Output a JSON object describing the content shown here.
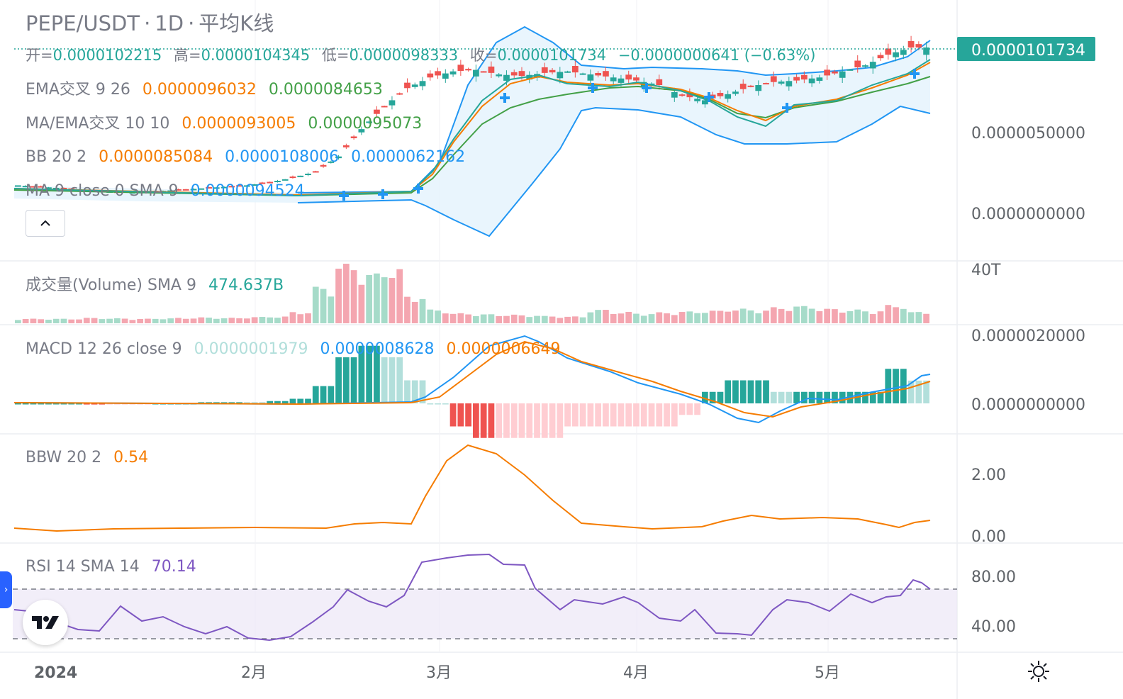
{
  "header": {
    "symbol": "PEPE/USDT",
    "interval": "1D",
    "chart_style": "平均K线",
    "ohlc": {
      "open_label": "开=",
      "open": "0.0000102215",
      "high_label": "高=",
      "high": "0.0000104345",
      "low_label": "低=",
      "low": "0.0000098333",
      "close_label": "收=",
      "close": "0.0000101734",
      "change": "−0.0000000641 (−0.63%)"
    }
  },
  "indicators": {
    "ema_cross": {
      "label": "EMA交叉 9 26",
      "v1": "0.0000096032",
      "v2": "0.0000084653"
    },
    "ma_ema_cross": {
      "label": "MA/EMA交叉 10 10",
      "v1": "0.0000093005",
      "v2": "0.0000095073"
    },
    "bb": {
      "label": "BB 20 2",
      "v1": "0.0000085084",
      "v2": "0.0000108006",
      "v3": "0.0000062162"
    },
    "ma": {
      "label": "MA 9 close 0 SMA 9",
      "v1": "0.0000094524"
    },
    "volume": {
      "label": "成交量(Volume) SMA 9",
      "v1": "474.637B"
    },
    "macd": {
      "label": "MACD 12 26 close 9",
      "v1": "0.0000001979",
      "v2": "0.0000008628",
      "v3": "0.0000006649"
    },
    "bbw": {
      "label": "BBW 20 2",
      "v1": "0.54"
    },
    "rsi": {
      "label": "RSI 14 SMA 14",
      "v1": "70.14"
    }
  },
  "price_axis": {
    "last_price": "0.0000101734",
    "main_ticks": [
      "0.0000050000",
      "0.0000000000"
    ],
    "volume_tick": "40T",
    "macd_ticks": [
      "0.0000020000",
      "0.0000000000"
    ],
    "bbw_ticks": [
      "2.00",
      "0.00"
    ],
    "rsi_ticks": [
      "80.00",
      "40.00"
    ]
  },
  "time_axis": [
    "2024",
    "2月",
    "3月",
    "4月",
    "5月"
  ],
  "colors": {
    "up": "#26a69a",
    "down": "#ef5350",
    "ema_fast": "#f57c00",
    "ema_slow": "#43a047",
    "bb": "#2196f3",
    "ma": "#2196f3",
    "macd_line": "#2196f3",
    "signal_line": "#f57c00",
    "bbw": "#f57c00",
    "rsi": "#7e57c2",
    "accent": "#2962ff"
  },
  "chart_data": [
    {
      "type": "candlestick",
      "title": "PEPE/USDT · 1D · 平均K线",
      "x": [
        "2024-01",
        "2024-02",
        "2024-03",
        "2024-04",
        "2024-05"
      ],
      "ylim": [
        0,
        1.05e-05
      ],
      "closes": [
        1.1e-06,
        1e-06,
        9e-07,
        8e-07,
        7e-07,
        6.5e-07,
        7e-07,
        8e-07,
        9e-07,
        1e-06,
        1.1e-06,
        1.3e-06,
        1.6e-06,
        2e-06,
        3e-06,
        4.8e-06,
        6.3e-06,
        7.5e-06,
        8.2e-06,
        8.6e-06,
        8.7e-06,
        8.4e-06,
        8.3e-06,
        8.5e-06,
        8.6e-06,
        8.4e-06,
        8.2e-06,
        8e-06,
        7.7e-06,
        7e-06,
        6.7e-06,
        7.1e-06,
        7.6e-06,
        7.9e-06,
        8e-06,
        8.2e-06,
        8.6e-06,
        9e-06,
        9.7e-06,
        1.01734e-05
      ],
      "last": 1.01734e-05
    },
    {
      "type": "bar",
      "title": "成交量(Volume) SMA 9",
      "sma": "474.637B",
      "values": [
        1,
        1,
        1,
        1.2,
        1.1,
        1,
        1.1,
        1.2,
        1.3,
        1.2,
        1.4,
        1.5,
        2.5,
        8,
        13,
        11,
        12,
        6,
        3,
        2.2,
        2,
        1.9,
        1.8,
        1.6,
        1.5,
        3,
        2.5,
        2.2,
        2.4,
        2.6,
        2.8,
        3.2,
        3,
        3.5,
        3.8,
        3.2,
        3,
        2.8,
        4,
        2.5
      ]
    },
    {
      "type": "line",
      "title": "MACD 12 26 close 9",
      "series": [
        {
          "name": "macd",
          "values": [
            0,
            0,
            0,
            -1e-08,
            -2e-08,
            -2e-08,
            -1e-08,
            0,
            1e-08,
            2e-08,
            3e-08,
            5e-08,
            1e-07,
            3e-07,
            8e-07,
            1.4e-06,
            1.8e-06,
            1.9e-06,
            1.7e-06,
            1.3e-06,
            9e-07,
            6e-07,
            4e-07,
            2e-07,
            1e-07,
            -1e-07,
            -2e-07,
            -3e-07,
            -5e-07,
            -5e-07,
            -3e-07,
            0,
            2e-07,
            2e-07,
            2e-07,
            3e-07,
            4e-07,
            5e-07,
            8e-07,
            8.628e-07
          ]
        },
        {
          "name": "signal",
          "values": [
            0,
            0,
            0,
            0,
            -1e-08,
            -1e-08,
            -1e-08,
            0,
            0,
            1e-08,
            2e-08,
            3e-08,
            6e-08,
            1.5e-07,
            4e-07,
            9e-07,
            1.4e-06,
            1.7e-06,
            1.7e-06,
            1.5e-06,
            1.2e-06,
            9e-07,
            7e-07,
            5e-07,
            3e-07,
            1e-07,
            0,
            -1e-07,
            -3e-07,
            -4e-07,
            -4e-07,
            -2e-07,
            0,
            1e-07,
            1e-07,
            2e-07,
            3e-07,
            4e-07,
            5e-07,
            6.649e-07
          ]
        }
      ]
    },
    {
      "type": "line",
      "title": "BBW 20 2",
      "ylim": [
        0,
        3
      ],
      "values": [
        0.2,
        0.15,
        0.12,
        0.15,
        0.18,
        0.2,
        0.22,
        0.2,
        0.25,
        0.3,
        0.25,
        0.28,
        0.3,
        1.3,
        2.8,
        2.6,
        2.0,
        1.2,
        0.35,
        0.28,
        0.25,
        0.25,
        0.2,
        0.22,
        0.2,
        0.4,
        0.5,
        0.6,
        0.55,
        0.5,
        0.55,
        0.6,
        0.62,
        0.6,
        0.55,
        0.35,
        0.25,
        0.3,
        0.45,
        0.54
      ]
    },
    {
      "type": "line",
      "title": "RSI 14 SMA 14",
      "ylim": [
        30,
        100
      ],
      "values": [
        55,
        48,
        45,
        52,
        50,
        42,
        38,
        45,
        53,
        58,
        62,
        55,
        60,
        82,
        88,
        90,
        88,
        68,
        60,
        58,
        62,
        60,
        55,
        58,
        50,
        48,
        55,
        45,
        38,
        42,
        58,
        62,
        60,
        66,
        60,
        63,
        68,
        70,
        75,
        70.14
      ]
    }
  ]
}
